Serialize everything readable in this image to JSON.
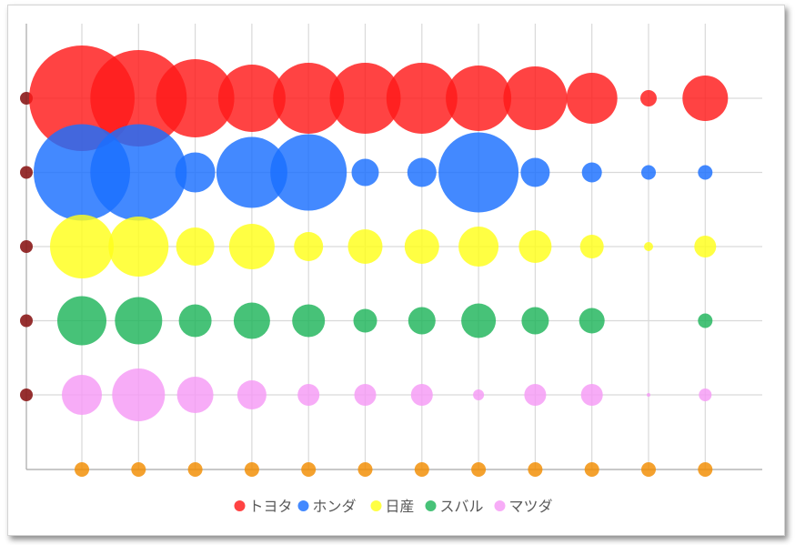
{
  "chart_data": {
    "type": "scatter",
    "subtype": "bubble",
    "title": "",
    "xlabel": "",
    "ylabel": "",
    "x": [
      1,
      2,
      3,
      4,
      5,
      6,
      7,
      8,
      9,
      10,
      11,
      12
    ],
    "grid": true,
    "legend_position": "bottom",
    "series": [
      {
        "name": "トヨタ",
        "color": "#ff1a1a",
        "sizes": [
          58,
          53,
          43,
          37,
          39,
          39,
          39,
          36,
          35,
          28,
          9,
          25
        ]
      },
      {
        "name": "ホンダ",
        "color": "#1a6fff",
        "sizes": [
          53,
          53,
          22,
          39,
          42,
          15,
          16,
          44,
          16,
          11,
          8,
          8
        ]
      },
      {
        "name": "日産",
        "color": "#ffff1a",
        "sizes": [
          35,
          33,
          21,
          25,
          16,
          19,
          19,
          22,
          18,
          13,
          5,
          12
        ]
      },
      {
        "name": "スバル",
        "color": "#1eb45a",
        "sizes": [
          27,
          26,
          18,
          20,
          18,
          13,
          15,
          19,
          15,
          14,
          0,
          8
        ]
      },
      {
        "name": "マツダ",
        "color": "#f59af5",
        "sizes": [
          22,
          29,
          20,
          16,
          12,
          12,
          12,
          6,
          12,
          12,
          2,
          7
        ]
      },
      {
        "name": "",
        "color": "#f28c00",
        "sizes": [
          8,
          8,
          8,
          8,
          8,
          8,
          8,
          8,
          8,
          8,
          8,
          8
        ]
      }
    ],
    "edge_markers": {
      "color": "#8b1a1a",
      "rows": 5
    }
  }
}
